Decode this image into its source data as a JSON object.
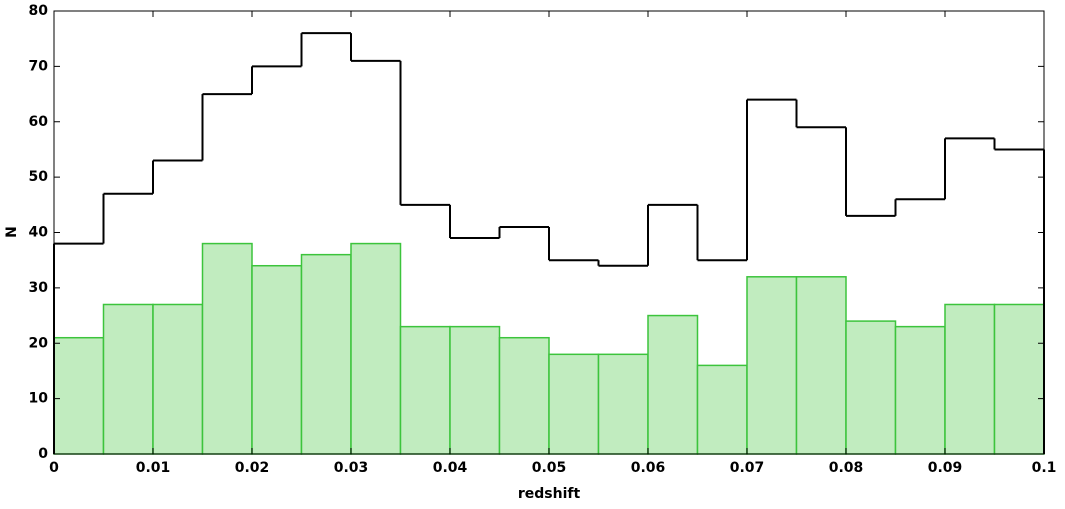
{
  "chart_data": {
    "type": "histogram",
    "xlabel": "redshift",
    "ylabel": "N",
    "bins": [
      0,
      0.005,
      0.01,
      0.015,
      0.02,
      0.025,
      0.03,
      0.035,
      0.04,
      0.045,
      0.05,
      0.055,
      0.06,
      0.065,
      0.07,
      0.075,
      0.08,
      0.085,
      0.09,
      0.095,
      0.1
    ],
    "series": [
      {
        "style": "filled",
        "color": "#c1ecbf",
        "edgecolor": "#3cc43c",
        "values": [
          21,
          27,
          27,
          38,
          34,
          36,
          38,
          23,
          23,
          21,
          18,
          18,
          25,
          16,
          32,
          32,
          24,
          23,
          27,
          27
        ]
      },
      {
        "style": "step",
        "color": "#000000",
        "values": [
          38,
          47,
          53,
          65,
          70,
          76,
          71,
          45,
          39,
          41,
          35,
          34,
          45,
          35,
          64,
          59,
          43,
          46,
          57,
          55
        ]
      }
    ],
    "xlim": [
      0,
      0.1
    ],
    "ylim": [
      0,
      80
    ],
    "xticks": [
      0,
      0.01,
      0.02,
      0.03,
      0.04,
      0.05,
      0.06,
      0.07,
      0.08,
      0.09,
      0.1
    ],
    "yticks": [
      0,
      10,
      20,
      30,
      40,
      50,
      60,
      70,
      80
    ]
  }
}
